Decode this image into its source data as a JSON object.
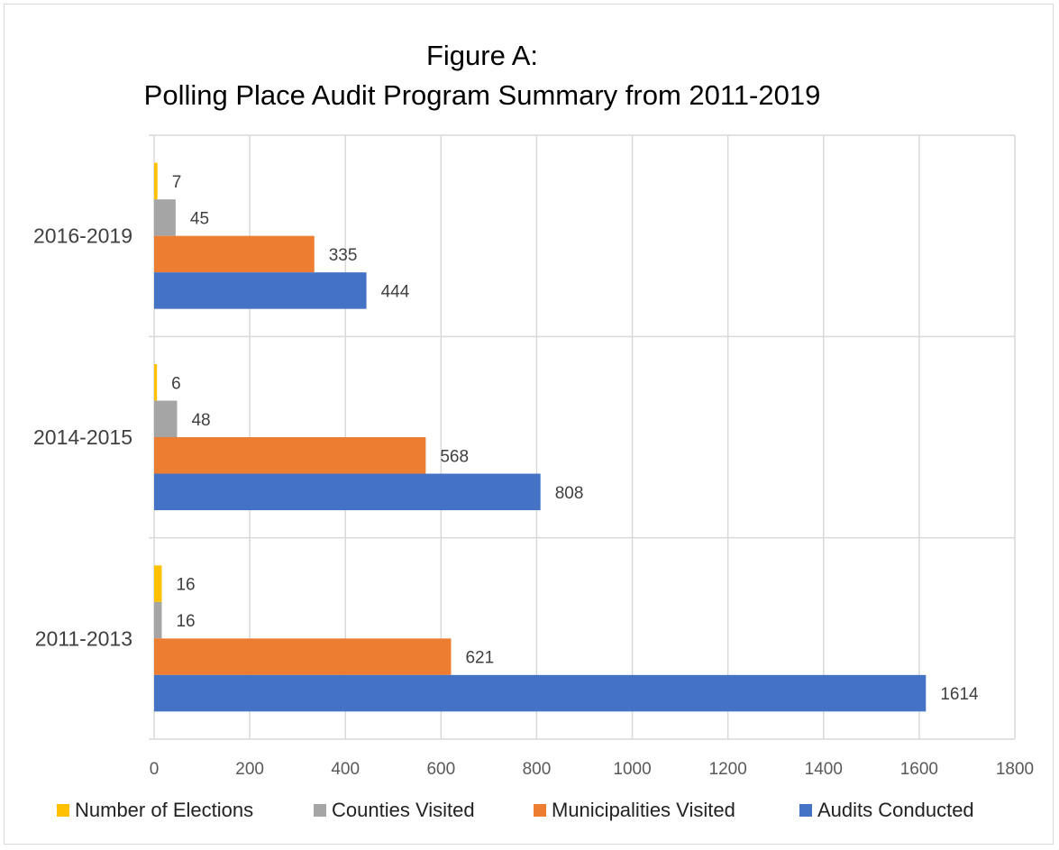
{
  "chart_data": {
    "type": "bar",
    "orientation": "horizontal",
    "title": "Figure A:",
    "subtitle": "Polling Place Audit Program Summary from 2011-2019",
    "categories": [
      "2016-2019",
      "2014-2015",
      "2011-2013"
    ],
    "series": [
      {
        "name": "Number of Elections",
        "color": "#ffc000",
        "values": [
          7,
          6,
          16
        ]
      },
      {
        "name": "Counties Visited",
        "color": "#a5a5a5",
        "values": [
          45,
          48,
          16
        ]
      },
      {
        "name": "Municipalities Visited",
        "color": "#ed7d31",
        "values": [
          335,
          568,
          621
        ]
      },
      {
        "name": "Audits Conducted",
        "color": "#4472c4",
        "values": [
          444,
          808,
          1614
        ]
      }
    ],
    "xlim": [
      0,
      1800
    ],
    "xticks": [
      0,
      200,
      400,
      600,
      800,
      1000,
      1200,
      1400,
      1600,
      1800
    ],
    "xlabel": "",
    "ylabel": "",
    "grid": true,
    "legend": "bottom",
    "data_labels": true
  }
}
